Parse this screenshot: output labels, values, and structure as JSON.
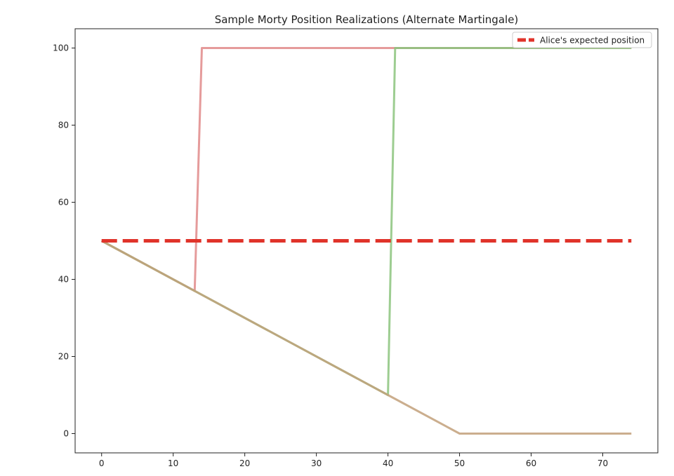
{
  "chart_data": {
    "type": "line",
    "title": "Sample Morty Position Realizations (Alternate Martingale)",
    "xlabel": "",
    "ylabel": "",
    "xlim": [
      -3.7,
      77.7
    ],
    "ylim": [
      -5,
      105
    ],
    "xticks": [
      0,
      10,
      20,
      30,
      40,
      50,
      60,
      70
    ],
    "yticks": [
      0,
      20,
      40,
      60,
      80,
      100
    ],
    "grid": false,
    "legend_position": "top-right",
    "series": [
      {
        "color": "#e08a8a",
        "points": [
          [
            0,
            50
          ],
          [
            13,
            37
          ],
          [
            14,
            100
          ],
          [
            74,
            100
          ]
        ]
      },
      {
        "color": "#8cc47e",
        "points": [
          [
            0,
            50
          ],
          [
            40,
            10
          ],
          [
            41,
            100
          ],
          [
            74,
            100
          ]
        ]
      },
      {
        "color": "#c2a07a",
        "points": [
          [
            0,
            50
          ],
          [
            40,
            10
          ],
          [
            50,
            0
          ],
          [
            74,
            0
          ]
        ]
      },
      {
        "name": "Alice's expected position",
        "color": "#e0332a",
        "dashed": true,
        "points": [
          [
            0,
            50
          ],
          [
            74,
            50
          ]
        ]
      }
    ]
  },
  "legend": {
    "label": "Alice's expected position"
  }
}
